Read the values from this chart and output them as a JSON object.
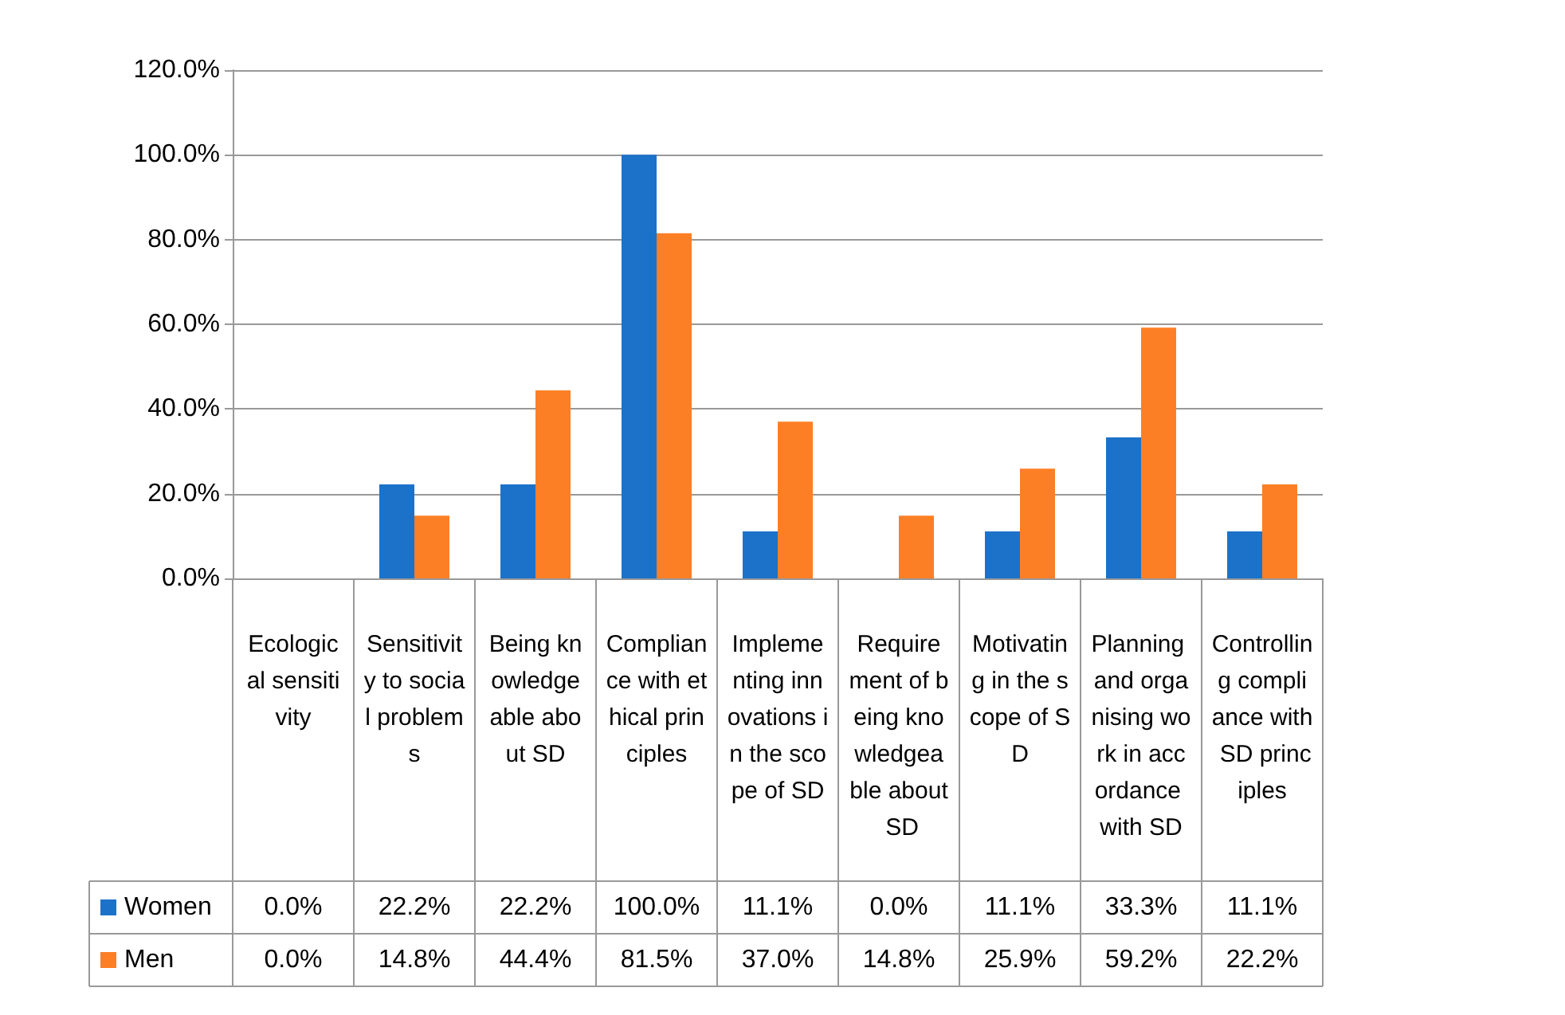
{
  "chart_data": {
    "type": "bar",
    "categories": [
      "Ecological sensitivity",
      "Sensitivity to social problems",
      "Being knowledgeable about SD",
      "Compliance with ethical principles",
      "Implementing innovations in the scope of SD",
      "Requirement of being knowledgeable about SD",
      "Motivating in the scope of SD",
      "Planning and organising work in accordance with SD",
      "Controlling compliance with SD principles"
    ],
    "series": [
      {
        "name": "Women",
        "color": "#1c72c9",
        "values": [
          0,
          22.2,
          22.2,
          100,
          11.1,
          0,
          11.1,
          33.3,
          11.1
        ],
        "value_labels": [
          "0.0%",
          "22.2%",
          "22.2%",
          "100.0%",
          "11.1%",
          "0.0%",
          "11.1%",
          "33.3%",
          "11.1%"
        ]
      },
      {
        "name": "Men",
        "color": "#fd7f25",
        "values": [
          0,
          14.8,
          44.4,
          81.5,
          37,
          14.8,
          25.9,
          59.2,
          22.2
        ],
        "value_labels": [
          "0.0%",
          "14.8%",
          "44.4%",
          "81.5%",
          "37.0%",
          "14.8%",
          "25.9%",
          "59.2%",
          "22.2%"
        ]
      }
    ],
    "ylim": [
      0,
      120
    ],
    "yticks": [
      {
        "value": 0,
        "label": "0.0%"
      },
      {
        "value": 20,
        "label": "20.0%"
      },
      {
        "value": 40,
        "label": "40.0%"
      },
      {
        "value": 60,
        "label": "60.0%"
      },
      {
        "value": 80,
        "label": "80.0%"
      },
      {
        "value": 100,
        "label": "100.0%"
      },
      {
        "value": 120,
        "label": "120.0%"
      }
    ],
    "grid": "y",
    "legend": "bottom",
    "data_labels": true
  }
}
